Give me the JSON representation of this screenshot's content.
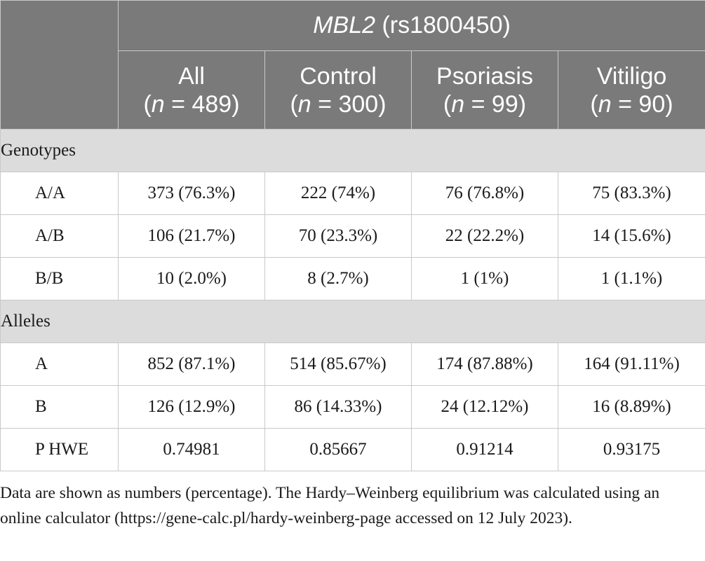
{
  "table": {
    "gene_label": "MBL2",
    "variant_label": "(rs1800450)",
    "columns": [
      {
        "name": "All",
        "n_prefix": "(",
        "n_var": "n",
        "n_rest": " = 489)"
      },
      {
        "name": "Control",
        "n_prefix": "(",
        "n_var": "n",
        "n_rest": " = 300)"
      },
      {
        "name": "Psoriasis",
        "n_prefix": "(",
        "n_var": "n",
        "n_rest": " = 99)"
      },
      {
        "name": "Vitiligo",
        "n_prefix": "(",
        "n_var": "n",
        "n_rest": " = 90)"
      }
    ],
    "sections": [
      {
        "title": "Genotypes",
        "rows": [
          {
            "label": "A/A",
            "values": [
              "373 (76.3%)",
              "222 (74%)",
              "76 (76.8%)",
              "75 (83.3%)"
            ]
          },
          {
            "label": "A/B",
            "values": [
              "106 (21.7%)",
              "70 (23.3%)",
              "22 (22.2%)",
              "14 (15.6%)"
            ]
          },
          {
            "label": "B/B",
            "values": [
              "10 (2.0%)",
              "8 (2.7%)",
              "1 (1%)",
              "1 (1.1%)"
            ]
          }
        ]
      },
      {
        "title": "Alleles",
        "rows": [
          {
            "label": "A",
            "values": [
              "852 (87.1%)",
              "514 (85.67%)",
              "174 (87.88%)",
              "164 (91.11%)"
            ]
          },
          {
            "label": "B",
            "values": [
              "126 (12.9%)",
              "86 (14.33%)",
              "24 (12.12%)",
              "16 (8.89%)"
            ]
          },
          {
            "label": "P HWE",
            "values": [
              "0.74981",
              "0.85667",
              "0.91214",
              "0.93175"
            ]
          }
        ]
      }
    ]
  },
  "footnote": "Data are shown as numbers (percentage). The Hardy–Weinberg equilibrium was calculated using an online calculator (https://gene-calc.pl/hardy-weinberg-page accessed on 12 July 2023).",
  "colors": {
    "header_bg": "#7a7a7a",
    "section_bg": "#dcdcdc",
    "border": "#c9c9c9"
  }
}
